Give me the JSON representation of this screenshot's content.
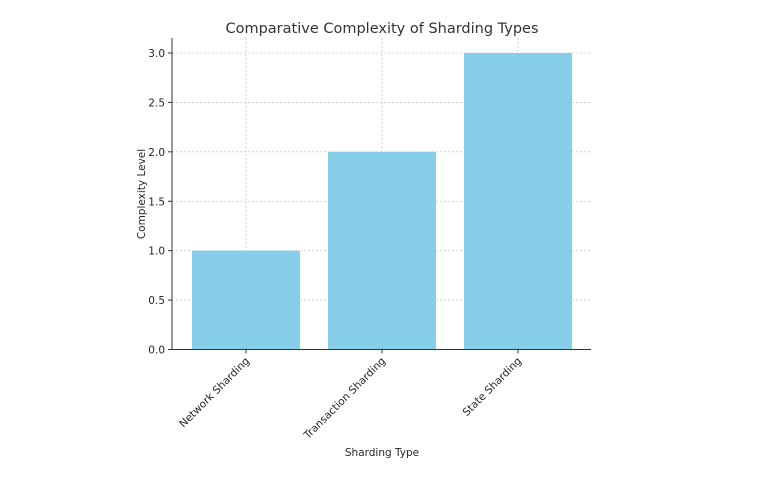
{
  "chart_data": {
    "type": "bar",
    "title": "Comparative Complexity of Sharding Types",
    "xlabel": "Sharding Type",
    "ylabel": "Complexity Level",
    "categories": [
      "Network Sharding",
      "Transaction Sharding",
      "State Sharding"
    ],
    "values": [
      1,
      2,
      3
    ],
    "ylim": [
      0,
      3.15
    ],
    "yticks": [
      "0.0",
      "0.5",
      "1.0",
      "1.5",
      "2.0",
      "2.5",
      "3.0"
    ],
    "grid": true,
    "legend": null,
    "bar_color": "#87CEEB",
    "xtick_rotation": 45
  }
}
